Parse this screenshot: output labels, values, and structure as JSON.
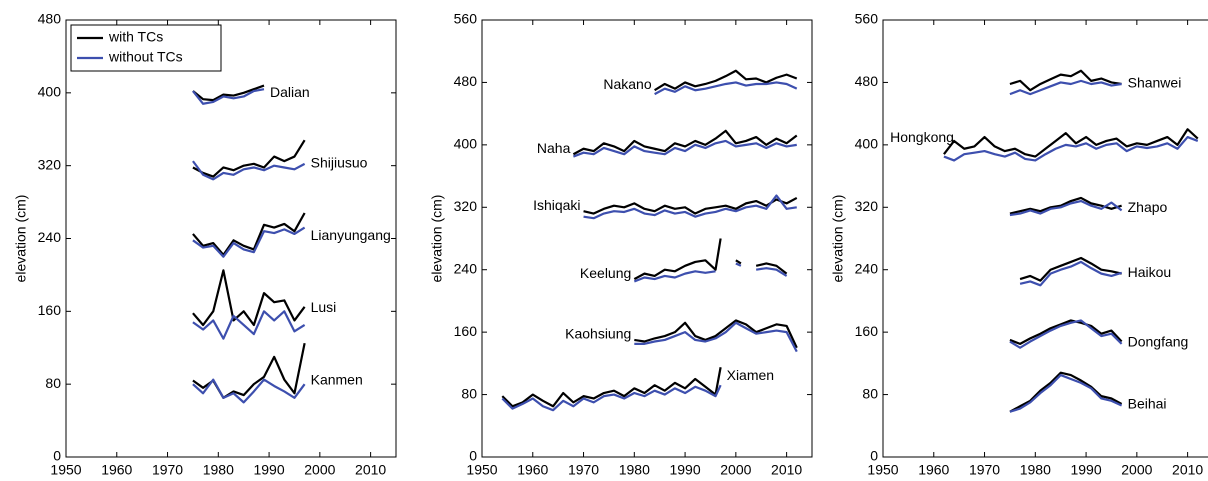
{
  "chart_data": [
    {
      "type": "line",
      "y_label": "elevation (cm)",
      "xlim": [
        1950,
        2015
      ],
      "xticks": [
        1950,
        1960,
        1970,
        1980,
        1990,
        2000,
        2010
      ],
      "ylim": [
        0,
        480
      ],
      "yticks": [
        0,
        80,
        160,
        240,
        320,
        400,
        480
      ],
      "line_colors": [
        "#000000",
        "#3d4fae"
      ],
      "legend": [
        {
          "name": "with TCs",
          "color": "#000000"
        },
        {
          "name": "without TCs",
          "color": "#3d4fae"
        }
      ],
      "legend_position": "upper left",
      "stations": [
        {
          "label": "Dalian",
          "x": [
            1975,
            1977,
            1979,
            1981,
            1983,
            1985,
            1987,
            1989
          ],
          "with_tcs": [
            402,
            393,
            392,
            398,
            397,
            400,
            404,
            408
          ],
          "without_tcs": [
            402,
            388,
            390,
            396,
            394,
            396,
            402,
            404
          ]
        },
        {
          "label": "Shijiusuo",
          "x": [
            1975,
            1977,
            1979,
            1981,
            1983,
            1985,
            1987,
            1989,
            1991,
            1993,
            1995,
            1997
          ],
          "with_tcs": [
            318,
            312,
            308,
            318,
            315,
            320,
            322,
            318,
            330,
            325,
            330,
            348
          ],
          "without_tcs": [
            325,
            310,
            305,
            312,
            310,
            316,
            318,
            315,
            320,
            318,
            316,
            322
          ]
        },
        {
          "label": "Lianyungang",
          "x": [
            1975,
            1977,
            1979,
            1981,
            1983,
            1985,
            1987,
            1989,
            1991,
            1993,
            1995,
            1997
          ],
          "with_tcs": [
            245,
            232,
            235,
            222,
            238,
            232,
            228,
            255,
            252,
            256,
            248,
            268
          ],
          "without_tcs": [
            238,
            230,
            232,
            220,
            235,
            228,
            225,
            248,
            246,
            250,
            245,
            252
          ]
        },
        {
          "label": "Lusi",
          "x": [
            1975,
            1977,
            1979,
            1981,
            1983,
            1985,
            1987,
            1989,
            1991,
            1993,
            1995,
            1997
          ],
          "with_tcs": [
            158,
            145,
            160,
            205,
            150,
            160,
            145,
            180,
            170,
            172,
            150,
            165
          ],
          "without_tcs": [
            148,
            140,
            150,
            130,
            155,
            145,
            135,
            160,
            150,
            160,
            138,
            145
          ]
        },
        {
          "label": "Kanmen",
          "x": [
            1975,
            1977,
            1979,
            1981,
            1983,
            1985,
            1987,
            1989,
            1991,
            1993,
            1995,
            1997
          ],
          "with_tcs": [
            84,
            76,
            84,
            65,
            72,
            68,
            80,
            88,
            110,
            85,
            70,
            125
          ],
          "without_tcs": [
            80,
            70,
            85,
            65,
            70,
            60,
            72,
            85,
            78,
            72,
            65,
            80
          ]
        }
      ]
    },
    {
      "type": "line",
      "y_label": "elevation (cm)",
      "xlim": [
        1950,
        2015
      ],
      "xticks": [
        1950,
        1960,
        1970,
        1980,
        1990,
        2000,
        2010
      ],
      "ylim": [
        0,
        560
      ],
      "yticks": [
        0,
        80,
        160,
        240,
        320,
        400,
        480,
        560
      ],
      "line_colors": [
        "#000000",
        "#3d4fae"
      ],
      "stations": [
        {
          "label": "Nakano",
          "x": [
            1984,
            1986,
            1988,
            1990,
            1992,
            1994,
            1996,
            1998,
            2000,
            2002,
            2004,
            2006,
            2008,
            2010,
            2012
          ],
          "with_tcs": [
            470,
            478,
            472,
            480,
            475,
            478,
            482,
            488,
            495,
            484,
            485,
            480,
            486,
            490,
            485
          ],
          "without_tcs": [
            465,
            472,
            468,
            475,
            470,
            472,
            475,
            478,
            480,
            476,
            478,
            478,
            480,
            478,
            472
          ]
        },
        {
          "label": "Naha",
          "x": [
            1968,
            1970,
            1972,
            1974,
            1976,
            1978,
            1980,
            1982,
            1984,
            1986,
            1988,
            1990,
            1992,
            1994,
            1996,
            1998,
            2000,
            2002,
            2004,
            2006,
            2008,
            2010,
            2012
          ],
          "with_tcs": [
            388,
            395,
            392,
            402,
            398,
            392,
            405,
            398,
            395,
            392,
            402,
            398,
            405,
            400,
            408,
            418,
            402,
            405,
            410,
            400,
            408,
            402,
            412
          ],
          "without_tcs": [
            385,
            390,
            388,
            396,
            392,
            388,
            398,
            392,
            390,
            388,
            396,
            392,
            400,
            396,
            402,
            405,
            398,
            400,
            402,
            396,
            402,
            398,
            400
          ]
        },
        {
          "label": "Ishiqaki",
          "x": [
            1970,
            1972,
            1974,
            1976,
            1978,
            1980,
            1982,
            1984,
            1986,
            1988,
            1990,
            1992,
            1994,
            1996,
            1998,
            2000,
            2002,
            2004,
            2006,
            2008,
            2010,
            2012
          ],
          "with_tcs": [
            315,
            312,
            318,
            322,
            320,
            325,
            318,
            315,
            322,
            318,
            320,
            312,
            318,
            320,
            322,
            318,
            325,
            328,
            322,
            330,
            325,
            332
          ],
          "without_tcs": [
            308,
            306,
            312,
            315,
            314,
            318,
            312,
            310,
            316,
            312,
            314,
            308,
            312,
            314,
            318,
            315,
            320,
            322,
            318,
            335,
            318,
            320
          ]
        },
        {
          "label": "Keelung",
          "x": [
            1980,
            1982,
            1984,
            1986,
            1988,
            1990,
            1992,
            1994,
            1996,
            1997,
            1999,
            2000,
            2001,
            2003,
            2004,
            2006,
            2008,
            2010
          ],
          "with_tcs": [
            228,
            235,
            232,
            240,
            238,
            245,
            250,
            252,
            240,
            280,
            null,
            252,
            248,
            null,
            245,
            248,
            245,
            235
          ],
          "without_tcs": [
            225,
            230,
            228,
            232,
            230,
            235,
            238,
            236,
            238,
            null,
            null,
            248,
            245,
            null,
            240,
            242,
            240,
            232
          ]
        },
        {
          "label": "Kaohsiung",
          "x": [
            1980,
            1982,
            1984,
            1986,
            1988,
            1990,
            1992,
            1994,
            1996,
            1998,
            2000,
            2002,
            2004,
            2006,
            2008,
            2010,
            2012
          ],
          "with_tcs": [
            150,
            148,
            152,
            155,
            160,
            172,
            155,
            150,
            155,
            165,
            175,
            170,
            160,
            165,
            170,
            168,
            140
          ],
          "without_tcs": [
            145,
            145,
            148,
            150,
            155,
            160,
            150,
            148,
            152,
            160,
            172,
            165,
            158,
            160,
            162,
            160,
            135
          ]
        },
        {
          "label": "Xiamen",
          "x": [
            1954,
            1956,
            1958,
            1960,
            1962,
            1964,
            1966,
            1968,
            1970,
            1972,
            1974,
            1976,
            1978,
            1980,
            1982,
            1984,
            1986,
            1988,
            1990,
            1992,
            1994,
            1996,
            1997
          ],
          "with_tcs": [
            78,
            65,
            70,
            80,
            72,
            65,
            82,
            70,
            78,
            75,
            82,
            85,
            78,
            88,
            82,
            92,
            85,
            95,
            88,
            100,
            90,
            80,
            115
          ],
          "without_tcs": [
            75,
            62,
            68,
            75,
            65,
            60,
            72,
            65,
            75,
            70,
            78,
            80,
            75,
            82,
            78,
            85,
            80,
            88,
            82,
            90,
            85,
            78,
            92
          ]
        }
      ]
    },
    {
      "type": "line",
      "y_label": "elevation (cm)",
      "xlim": [
        1950,
        2015
      ],
      "xticks": [
        1950,
        1960,
        1970,
        1980,
        1990,
        2000,
        2010
      ],
      "ylim": [
        0,
        560
      ],
      "yticks": [
        0,
        80,
        160,
        240,
        320,
        400,
        480,
        560
      ],
      "line_colors": [
        "#000000",
        "#3d4fae"
      ],
      "stations": [
        {
          "label": "Shanwei",
          "x": [
            1975,
            1977,
            1979,
            1981,
            1983,
            1985,
            1987,
            1989,
            1991,
            1993,
            1995,
            1997
          ],
          "with_tcs": [
            478,
            482,
            470,
            478,
            484,
            490,
            488,
            495,
            482,
            485,
            480,
            478
          ],
          "without_tcs": [
            465,
            470,
            465,
            470,
            475,
            480,
            478,
            482,
            478,
            480,
            476,
            478
          ]
        },
        {
          "label": "Hongkong",
          "x": [
            1962,
            1964,
            1966,
            1968,
            1970,
            1972,
            1974,
            1976,
            1978,
            1980,
            1982,
            1984,
            1986,
            1988,
            1990,
            1992,
            1994,
            1996,
            1998,
            2000,
            2002,
            2004,
            2006,
            2008,
            2010,
            2012
          ],
          "with_tcs": [
            388,
            405,
            395,
            398,
            410,
            398,
            392,
            395,
            388,
            385,
            395,
            405,
            415,
            402,
            410,
            400,
            405,
            408,
            398,
            402,
            400,
            405,
            410,
            400,
            420,
            408
          ],
          "without_tcs": [
            385,
            380,
            388,
            390,
            392,
            388,
            385,
            390,
            382,
            380,
            388,
            395,
            400,
            398,
            402,
            395,
            400,
            402,
            392,
            398,
            396,
            398,
            402,
            395,
            410,
            405
          ]
        },
        {
          "label": "Zhapo",
          "x": [
            1975,
            1977,
            1979,
            1981,
            1983,
            1985,
            1987,
            1989,
            1991,
            1993,
            1995,
            1997
          ],
          "with_tcs": [
            312,
            315,
            318,
            315,
            320,
            322,
            328,
            332,
            325,
            322,
            318,
            322
          ],
          "without_tcs": [
            310,
            312,
            316,
            312,
            318,
            320,
            325,
            328,
            322,
            318,
            326,
            316
          ]
        },
        {
          "label": "Haikou",
          "x": [
            1977,
            1979,
            1981,
            1983,
            1985,
            1987,
            1989,
            1991,
            1993,
            1995,
            1997
          ],
          "with_tcs": [
            228,
            232,
            226,
            240,
            245,
            250,
            255,
            248,
            240,
            238,
            235
          ],
          "without_tcs": [
            222,
            225,
            220,
            235,
            240,
            244,
            250,
            242,
            235,
            232,
            236
          ]
        },
        {
          "label": "Dongfang",
          "x": [
            1975,
            1977,
            1979,
            1981,
            1983,
            1985,
            1987,
            1989,
            1991,
            1993,
            1995,
            1997
          ],
          "with_tcs": [
            150,
            145,
            152,
            158,
            165,
            170,
            175,
            172,
            168,
            158,
            162,
            148
          ],
          "without_tcs": [
            148,
            140,
            148,
            155,
            162,
            168,
            172,
            175,
            165,
            155,
            158,
            145
          ]
        },
        {
          "label": "Beihai",
          "x": [
            1975,
            1977,
            1979,
            1981,
            1983,
            1985,
            1987,
            1989,
            1991,
            1993,
            1995,
            1997
          ],
          "with_tcs": [
            58,
            65,
            72,
            85,
            95,
            108,
            105,
            98,
            90,
            78,
            75,
            68
          ],
          "without_tcs": [
            58,
            62,
            70,
            82,
            92,
            105,
            100,
            95,
            88,
            75,
            72,
            66
          ]
        }
      ]
    }
  ]
}
